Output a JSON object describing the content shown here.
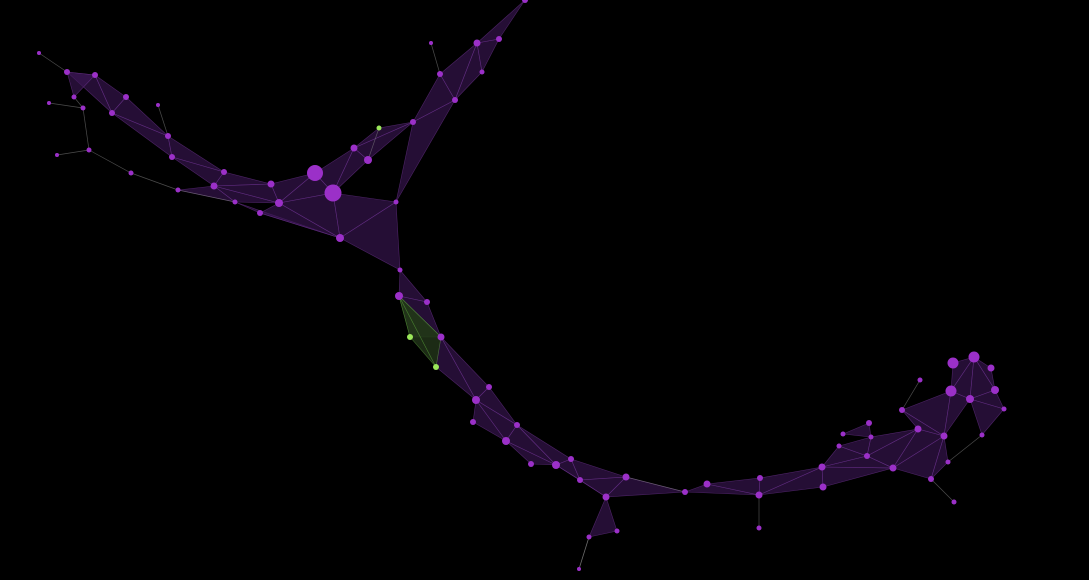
{
  "colors": {
    "background": "#000000",
    "node": "#9b30c8",
    "node_highlight": "#9be85a",
    "face": "#3b1656",
    "face_highlight": "#23361a"
  }
}
